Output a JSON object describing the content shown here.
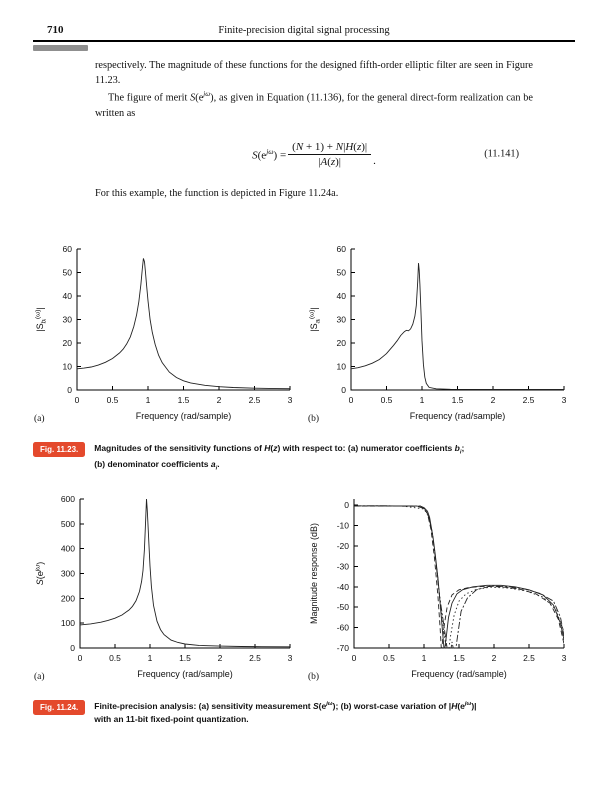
{
  "page": {
    "number": "710",
    "running_title": "Finite-precision digital signal processing"
  },
  "paragraphs": {
    "p1": "respectively. The magnitude of these functions for the designed fifth-order elliptic filter are seen in Figure 11.23.",
    "p2": [
      [
        "The figure of merit ",
        ""
      ],
      [
        "S",
        "i"
      ],
      [
        "(e",
        ""
      ],
      [
        "jω",
        "isup"
      ],
      [
        "), as given in Equation (11.136), for the general direct-form realization can be written as",
        ""
      ]
    ],
    "p3": "For this example, the function is depicted in Figure 11.24a."
  },
  "equation": {
    "lhs": [
      [
        "S",
        "i"
      ],
      [
        "(e",
        ""
      ],
      [
        "jω",
        "isup"
      ],
      [
        ") = ",
        ""
      ]
    ],
    "numerator": [
      [
        "(",
        ""
      ],
      [
        "N",
        "i"
      ],
      [
        " + 1) + ",
        ""
      ],
      [
        "N",
        "i"
      ],
      [
        "|",
        ""
      ],
      [
        "H",
        "i"
      ],
      [
        "(",
        ""
      ],
      [
        "z",
        "i"
      ],
      [
        ")|",
        ""
      ]
    ],
    "denominator": [
      [
        "|",
        ""
      ],
      [
        "A",
        "i"
      ],
      [
        "(",
        ""
      ],
      [
        "z",
        "i"
      ],
      [
        ")|",
        ""
      ]
    ],
    "period": ".",
    "number": "(11.141)"
  },
  "figures": {
    "fig23": {
      "tag": "Fig. 11.23.",
      "caption_lines": [
        [
          [
            "Magnitudes of the sensitivity functions of ",
            ""
          ],
          [
            "H",
            "i"
          ],
          [
            "(",
            ""
          ],
          [
            "z",
            "i"
          ],
          [
            ") with respect to: (a) numerator coefficients ",
            ""
          ],
          [
            "b",
            "i"
          ],
          [
            "i",
            "isub"
          ],
          [
            ";",
            ""
          ]
        ],
        [
          [
            "(b) denominator coefficients ",
            ""
          ],
          [
            "a",
            "i"
          ],
          [
            "i",
            "isub"
          ],
          [
            ".",
            ""
          ]
        ]
      ]
    },
    "fig24": {
      "tag": "Fig. 11.24.",
      "caption_lines": [
        [
          [
            "Finite-precision analysis: (a) sensitivity measurement ",
            ""
          ],
          [
            "S",
            "i"
          ],
          [
            "(e",
            ""
          ],
          [
            "jω",
            "isup"
          ],
          [
            "); (b) worst-case variation of |",
            ""
          ],
          [
            "H",
            "i"
          ],
          [
            "(e",
            ""
          ],
          [
            "jω",
            "isup"
          ],
          [
            ")|",
            ""
          ]
        ],
        [
          [
            "with an 11-bit fixed-point quantization.",
            ""
          ]
        ]
      ]
    }
  },
  "chart_data": [
    {
      "id": "fig-11-23a",
      "type": "line",
      "panel": "(a)",
      "xlabel": "Frequency (rad/sample)",
      "ylabel": [
        [
          "|S",
          ""
        ],
        [
          "bᵢ",
          "isub"
        ],
        [
          "(ω)",
          "sup"
        ],
        [
          "|",
          ""
        ]
      ],
      "xlim": [
        0,
        3
      ],
      "ylim": [
        0,
        60
      ],
      "xticks": [
        0,
        0.5,
        1,
        1.5,
        2,
        2.5,
        3
      ],
      "yticks": [
        0,
        10,
        20,
        30,
        40,
        50,
        60
      ],
      "series": [
        {
          "name": "numerator-sensitivity",
          "dash": "",
          "points": [
            [
              0,
              9
            ],
            [
              0.1,
              9.3
            ],
            [
              0.2,
              9.8
            ],
            [
              0.3,
              10.6
            ],
            [
              0.4,
              11.8
            ],
            [
              0.5,
              13.4
            ],
            [
              0.6,
              15.8
            ],
            [
              0.65,
              17.4
            ],
            [
              0.7,
              19.6
            ],
            [
              0.75,
              22.6
            ],
            [
              0.8,
              27
            ],
            [
              0.84,
              32
            ],
            [
              0.87,
              37.5
            ],
            [
              0.9,
              45
            ],
            [
              0.92,
              51.5
            ],
            [
              0.935,
              56
            ],
            [
              0.95,
              54.5
            ],
            [
              0.965,
              50
            ],
            [
              0.98,
              44.5
            ],
            [
              1.0,
              38
            ],
            [
              1.03,
              30
            ],
            [
              1.06,
              24.5
            ],
            [
              1.1,
              19.5
            ],
            [
              1.15,
              14.8
            ],
            [
              1.2,
              11.6
            ],
            [
              1.3,
              7.6
            ],
            [
              1.4,
              5.3
            ],
            [
              1.5,
              3.9
            ],
            [
              1.6,
              3
            ],
            [
              1.8,
              2
            ],
            [
              2.0,
              1.4
            ],
            [
              2.2,
              1.05
            ],
            [
              2.5,
              0.75
            ],
            [
              2.8,
              0.6
            ],
            [
              3.0,
              0.55
            ]
          ]
        }
      ]
    },
    {
      "id": "fig-11-23b",
      "type": "line",
      "panel": "(b)",
      "xlabel": "Frequency (rad/sample)",
      "ylabel": [
        [
          "|S",
          ""
        ],
        [
          "aᵢ",
          "isub"
        ],
        [
          "(ω)",
          "sup"
        ],
        [
          "|",
          ""
        ]
      ],
      "xlim": [
        0,
        3
      ],
      "ylim": [
        0,
        60
      ],
      "xticks": [
        0,
        0.5,
        1,
        1.5,
        2,
        2.5,
        3
      ],
      "yticks": [
        0,
        10,
        20,
        30,
        40,
        50,
        60
      ],
      "series": [
        {
          "name": "denominator-sensitivity",
          "dash": "",
          "points": [
            [
              0,
              9
            ],
            [
              0.1,
              9.5
            ],
            [
              0.2,
              10.3
            ],
            [
              0.3,
              11.4
            ],
            [
              0.4,
              13
            ],
            [
              0.5,
              15.5
            ],
            [
              0.6,
              19
            ],
            [
              0.65,
              21
            ],
            [
              0.7,
              23.2
            ],
            [
              0.75,
              24.8
            ],
            [
              0.78,
              25.4
            ],
            [
              0.81,
              25.2
            ],
            [
              0.84,
              26
            ],
            [
              0.87,
              28
            ],
            [
              0.9,
              31.5
            ],
            [
              0.92,
              36
            ],
            [
              0.94,
              46
            ],
            [
              0.95,
              54
            ],
            [
              0.96,
              51
            ],
            [
              0.97,
              45
            ],
            [
              0.985,
              34
            ],
            [
              1.0,
              21
            ],
            [
              1.02,
              11
            ],
            [
              1.04,
              5.5
            ],
            [
              1.06,
              2.8
            ],
            [
              1.1,
              1.1
            ],
            [
              1.2,
              0.5
            ],
            [
              1.4,
              0.3
            ],
            [
              1.7,
              0.25
            ],
            [
              2.0,
              0.2
            ],
            [
              2.5,
              0.2
            ],
            [
              3.0,
              0.2
            ]
          ]
        }
      ]
    },
    {
      "id": "fig-11-24a",
      "type": "line",
      "panel": "(a)",
      "xlabel": "Frequency (rad/sample)",
      "ylabel": [
        [
          "S",
          "i"
        ],
        [
          "(e",
          ""
        ],
        [
          "jω",
          "isup"
        ],
        [
          ")",
          ""
        ]
      ],
      "xlim": [
        0,
        3
      ],
      "ylim": [
        0,
        600
      ],
      "xticks": [
        0,
        0.5,
        1,
        1.5,
        2,
        2.5,
        3
      ],
      "yticks": [
        0,
        100,
        200,
        300,
        400,
        500,
        600
      ],
      "series": [
        {
          "name": "sensitivity-measurement",
          "dash": "",
          "points": [
            [
              0,
              93
            ],
            [
              0.15,
              97
            ],
            [
              0.3,
              104
            ],
            [
              0.4,
              111
            ],
            [
              0.5,
              120
            ],
            [
              0.6,
              133
            ],
            [
              0.7,
              153
            ],
            [
              0.75,
              168
            ],
            [
              0.8,
              190
            ],
            [
              0.85,
              228
            ],
            [
              0.88,
              268
            ],
            [
              0.9,
              312
            ],
            [
              0.92,
              395
            ],
            [
              0.935,
              500
            ],
            [
              0.95,
              600
            ],
            [
              0.96,
              560
            ],
            [
              0.97,
              505
            ],
            [
              0.985,
              420
            ],
            [
              1.0,
              330
            ],
            [
              1.02,
              248
            ],
            [
              1.05,
              172
            ],
            [
              1.1,
              108
            ],
            [
              1.15,
              74
            ],
            [
              1.2,
              54
            ],
            [
              1.3,
              32
            ],
            [
              1.4,
              22
            ],
            [
              1.5,
              16
            ],
            [
              1.7,
              10.5
            ],
            [
              2.0,
              7.5
            ],
            [
              2.3,
              6.2
            ],
            [
              2.6,
              5.4
            ],
            [
              3.0,
              5
            ]
          ]
        }
      ]
    },
    {
      "id": "fig-11-24b",
      "type": "line",
      "panel": "(b)",
      "xlabel": "Frequency (rad/sample)",
      "ylabel": [
        [
          "Magnitude response (dB)",
          ""
        ]
      ],
      "xlim": [
        0,
        3
      ],
      "ylim": [
        -70,
        3
      ],
      "xticks": [
        0,
        0.5,
        1,
        1.5,
        2,
        2.5,
        3
      ],
      "yticks": [
        0,
        -10,
        -20,
        -30,
        -40,
        -50,
        -60,
        -70
      ],
      "series": [
        {
          "name": "magnitude-response-nominal",
          "dash": "",
          "points": [
            [
              0,
              -0.4
            ],
            [
              0.3,
              -0.35
            ],
            [
              0.6,
              -0.45
            ],
            [
              0.8,
              -0.4
            ],
            [
              0.95,
              -0.55
            ],
            [
              1.0,
              -1.2
            ],
            [
              1.05,
              -3
            ],
            [
              1.08,
              -6
            ],
            [
              1.1,
              -10
            ],
            [
              1.13,
              -16
            ],
            [
              1.16,
              -24
            ],
            [
              1.2,
              -36
            ],
            [
              1.24,
              -52
            ],
            [
              1.27,
              -64
            ],
            [
              1.29,
              -72
            ],
            [
              1.32,
              -64
            ],
            [
              1.35,
              -55
            ],
            [
              1.4,
              -48
            ],
            [
              1.47,
              -43.5
            ],
            [
              1.55,
              -41.5
            ],
            [
              1.7,
              -40
            ],
            [
              1.9,
              -39.3
            ],
            [
              2.1,
              -39.3
            ],
            [
              2.3,
              -40
            ],
            [
              2.5,
              -41.5
            ],
            [
              2.7,
              -44
            ],
            [
              2.85,
              -49
            ],
            [
              2.95,
              -58
            ],
            [
              3.0,
              -66
            ]
          ]
        },
        {
          "name": "magnitude-response-variation-1",
          "dash": "5,3",
          "points": [
            [
              0,
              -0.5
            ],
            [
              0.5,
              -0.45
            ],
            [
              0.9,
              -0.6
            ],
            [
              1.0,
              -1.6
            ],
            [
              1.05,
              -4.2
            ],
            [
              1.1,
              -12
            ],
            [
              1.15,
              -26
            ],
            [
              1.2,
              -45
            ],
            [
              1.23,
              -60
            ],
            [
              1.25,
              -72
            ],
            [
              1.28,
              -61
            ],
            [
              1.33,
              -50
            ],
            [
              1.4,
              -44
            ],
            [
              1.5,
              -41.5
            ],
            [
              1.65,
              -40.3
            ],
            [
              1.85,
              -39.8
            ],
            [
              2.1,
              -40
            ],
            [
              2.35,
              -41
            ],
            [
              2.6,
              -43.5
            ],
            [
              2.8,
              -48
            ],
            [
              2.92,
              -56
            ],
            [
              3.0,
              -68
            ]
          ]
        },
        {
          "name": "magnitude-response-variation-2",
          "dash": "7,2,2,2",
          "points": [
            [
              0,
              -0.35
            ],
            [
              0.6,
              -0.4
            ],
            [
              0.95,
              -0.5
            ],
            [
              1.02,
              -2.2
            ],
            [
              1.07,
              -6
            ],
            [
              1.12,
              -14
            ],
            [
              1.17,
              -28
            ],
            [
              1.22,
              -44
            ],
            [
              1.28,
              -58
            ],
            [
              1.33,
              -70
            ],
            [
              1.36,
              -76
            ],
            [
              1.4,
              -67
            ],
            [
              1.44,
              -74
            ],
            [
              1.48,
              -64
            ],
            [
              1.53,
              -52
            ],
            [
              1.62,
              -45.5
            ],
            [
              1.75,
              -41.5
            ],
            [
              1.95,
              -39.6
            ],
            [
              2.2,
              -39.9
            ],
            [
              2.45,
              -41.2
            ],
            [
              2.65,
              -43.2
            ],
            [
              2.85,
              -47
            ],
            [
              2.95,
              -55
            ],
            [
              3.0,
              -64
            ]
          ]
        },
        {
          "name": "magnitude-response-variation-3",
          "dash": "1.5,2.5",
          "points": [
            [
              0,
              -0.45
            ],
            [
              0.7,
              -0.5
            ],
            [
              1.0,
              -1.9
            ],
            [
              1.06,
              -5.2
            ],
            [
              1.12,
              -13.5
            ],
            [
              1.18,
              -30
            ],
            [
              1.24,
              -50
            ],
            [
              1.3,
              -66
            ],
            [
              1.34,
              -74
            ],
            [
              1.38,
              -64
            ],
            [
              1.43,
              -54
            ],
            [
              1.5,
              -47
            ],
            [
              1.6,
              -43.5
            ],
            [
              1.75,
              -41.3
            ],
            [
              1.95,
              -40.2
            ],
            [
              2.2,
              -40.6
            ],
            [
              2.45,
              -42
            ],
            [
              2.7,
              -45
            ],
            [
              2.88,
              -51
            ],
            [
              3.0,
              -62
            ]
          ]
        }
      ]
    }
  ]
}
